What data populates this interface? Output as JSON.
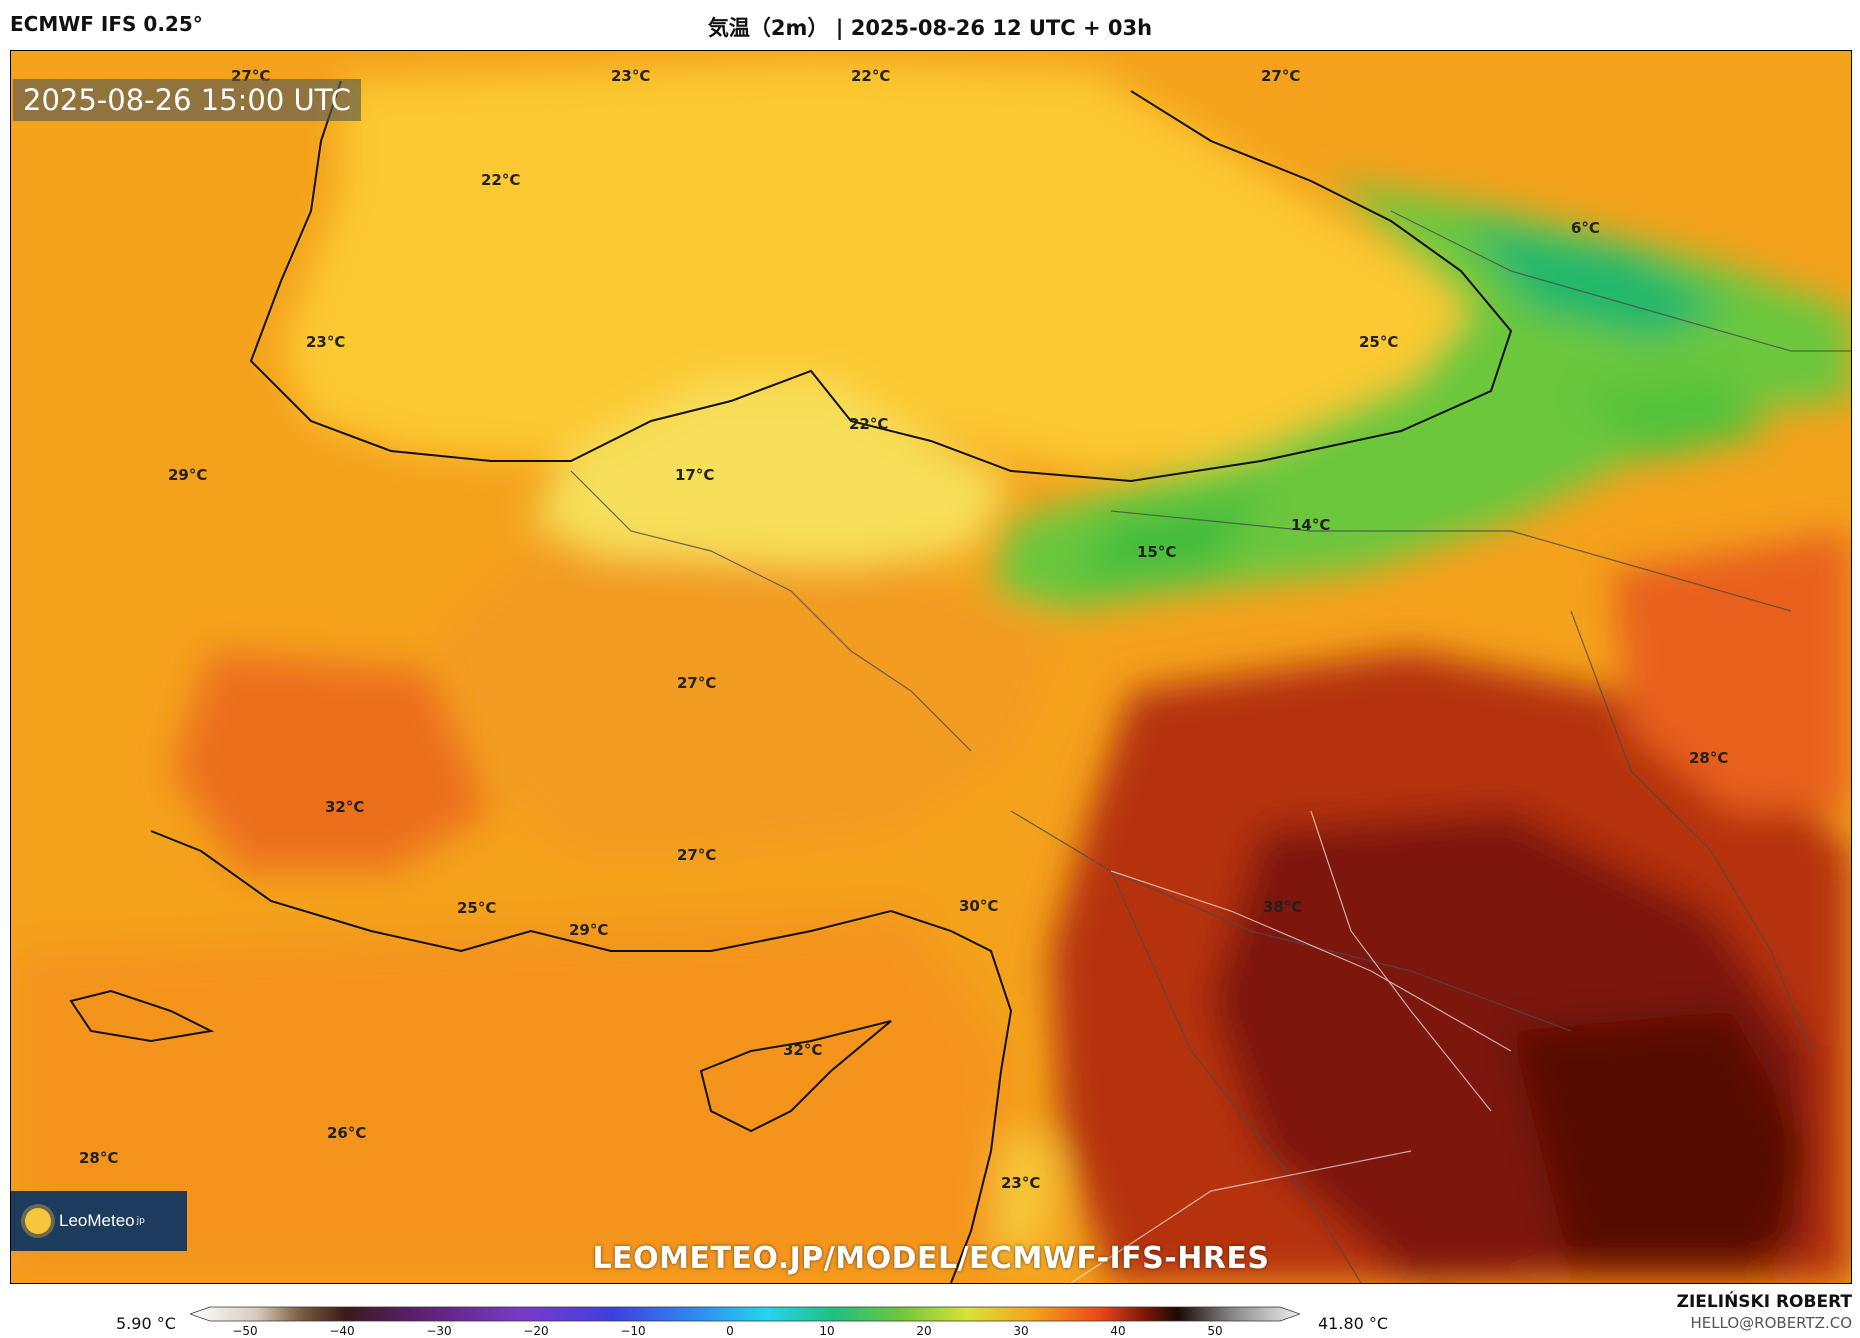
{
  "header": {
    "model": "ECMWF IFS 0.25°",
    "title": "気温（2m） | 2025-08-26 12 UTC + 03h"
  },
  "map": {
    "valid_time": "2025-08-26 15:00 UTC",
    "labels": [
      {
        "id": "l1",
        "text": "27°C"
      },
      {
        "id": "l2",
        "text": "23°C"
      },
      {
        "id": "l3",
        "text": "22°C"
      },
      {
        "id": "l4",
        "text": "27°C"
      },
      {
        "id": "l5",
        "text": "22°C"
      },
      {
        "id": "l6",
        "text": "6°C"
      },
      {
        "id": "l7",
        "text": "23°C"
      },
      {
        "id": "l8",
        "text": "25°C"
      },
      {
        "id": "l9",
        "text": "22°C"
      },
      {
        "id": "l10",
        "text": "29°C"
      },
      {
        "id": "l11",
        "text": "17°C"
      },
      {
        "id": "l12",
        "text": "14°C"
      },
      {
        "id": "l13",
        "text": "15°C"
      },
      {
        "id": "l14",
        "text": "27°C"
      },
      {
        "id": "l15",
        "text": "28°C"
      },
      {
        "id": "l16",
        "text": "32°C"
      },
      {
        "id": "l17",
        "text": "27°C"
      },
      {
        "id": "l18",
        "text": "25°C"
      },
      {
        "id": "l19",
        "text": "29°C"
      },
      {
        "id": "l20",
        "text": "30°C"
      },
      {
        "id": "l21",
        "text": "38°C"
      },
      {
        "id": "l22",
        "text": "32°C"
      },
      {
        "id": "l23",
        "text": "26°C"
      },
      {
        "id": "l24",
        "text": "28°C"
      },
      {
        "id": "l25",
        "text": "23°C"
      }
    ],
    "logo_text": "LeoMeteo",
    "logo_suffix": "jp",
    "url_overlay": "LEOMETEO.JP/MODEL/ECMWF-IFS-HRES"
  },
  "colorbar": {
    "min_label": "5.90 °C",
    "max_label": "41.80 °C",
    "ticks": [
      "−50",
      "−40",
      "−30",
      "−20",
      "−10",
      "0",
      "10",
      "20",
      "30",
      "40",
      "50"
    ],
    "range": [
      -50,
      50
    ]
  },
  "author": {
    "name": "ZIELIŃSKI ROBERT",
    "email": "HELLO@ROBERTZ.CO"
  }
}
